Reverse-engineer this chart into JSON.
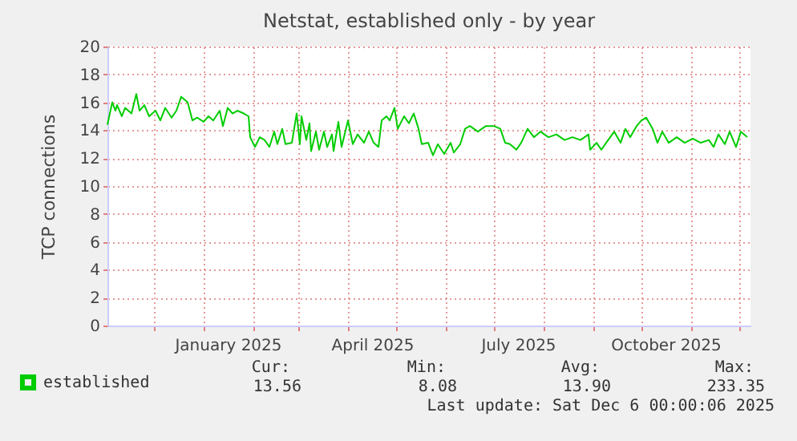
{
  "chart_data": {
    "type": "line",
    "title": "Netstat, established only - by year",
    "ylabel": "TCP connections",
    "x": [
      "2024-11-02",
      "2024-11-05",
      "2024-11-07",
      "2024-11-08",
      "2024-11-11",
      "2024-11-13",
      "2024-11-17",
      "2024-11-20",
      "2024-11-22",
      "2024-11-25",
      "2024-11-28",
      "2024-12-02",
      "2024-12-05",
      "2024-12-08",
      "2024-12-12",
      "2024-12-15",
      "2024-12-18",
      "2024-12-22",
      "2024-12-25",
      "2024-12-28",
      "2025-01-01",
      "2025-01-04",
      "2025-01-07",
      "2025-01-11",
      "2025-01-13",
      "2025-01-16",
      "2025-01-19",
      "2025-01-22",
      "2025-01-26",
      "2025-01-29",
      "2025-01-30",
      "2025-02-02",
      "2025-02-05",
      "2025-02-08",
      "2025-02-11",
      "2025-02-14",
      "2025-02-16",
      "2025-02-19",
      "2025-02-21",
      "2025-02-25",
      "2025-02-28",
      "2025-03-02",
      "2025-03-03",
      "2025-03-06",
      "2025-03-08",
      "2025-03-09",
      "2025-03-12",
      "2025-03-14",
      "2025-03-17",
      "2025-03-19",
      "2025-03-22",
      "2025-03-23",
      "2025-03-26",
      "2025-03-28",
      "2025-04-01",
      "2025-04-04",
      "2025-04-07",
      "2025-04-11",
      "2025-04-14",
      "2025-04-17",
      "2025-04-20",
      "2025-04-22",
      "2025-04-25",
      "2025-04-27",
      "2025-04-30",
      "2025-05-02",
      "2025-05-06",
      "2025-05-09",
      "2025-05-12",
      "2025-05-15",
      "2025-05-17",
      "2025-05-21",
      "2025-05-24",
      "2025-05-27",
      "2025-05-31",
      "2025-06-04",
      "2025-06-06",
      "2025-06-10",
      "2025-06-13",
      "2025-06-16",
      "2025-06-21",
      "2025-06-26",
      "2025-07-01",
      "2025-07-05",
      "2025-07-08",
      "2025-07-11",
      "2025-07-15",
      "2025-07-18",
      "2025-07-22",
      "2025-07-26",
      "2025-07-30",
      "2025-08-04",
      "2025-08-09",
      "2025-08-14",
      "2025-08-19",
      "2025-08-24",
      "2025-08-29",
      "2025-08-30",
      "2025-09-03",
      "2025-09-06",
      "2025-09-09",
      "2025-09-14",
      "2025-09-18",
      "2025-09-21",
      "2025-09-24",
      "2025-09-28",
      "2025-10-01",
      "2025-10-04",
      "2025-10-08",
      "2025-10-11",
      "2025-10-14",
      "2025-10-18",
      "2025-10-23",
      "2025-10-28",
      "2025-11-02",
      "2025-11-07",
      "2025-11-12",
      "2025-11-15",
      "2025-11-18",
      "2025-11-22",
      "2025-11-25",
      "2025-11-29",
      "2025-12-02",
      "2025-12-06"
    ],
    "series": [
      {
        "name": "established",
        "color": "#00cc00",
        "values": [
          14.4,
          16.0,
          15.4,
          15.8,
          15.0,
          15.6,
          15.2,
          16.6,
          15.4,
          15.8,
          15.0,
          15.4,
          14.7,
          15.6,
          14.9,
          15.4,
          16.4,
          16.0,
          14.7,
          14.9,
          14.6,
          15.0,
          14.7,
          15.4,
          14.3,
          15.6,
          15.2,
          15.4,
          15.2,
          15.0,
          13.5,
          12.8,
          13.5,
          13.3,
          12.8,
          13.9,
          13.0,
          14.1,
          13.0,
          13.1,
          15.2,
          13.0,
          15.0,
          13.3,
          14.5,
          12.5,
          13.9,
          12.6,
          13.9,
          12.8,
          13.7,
          12.5,
          14.6,
          12.8,
          14.7,
          13.0,
          13.7,
          13.1,
          13.9,
          13.1,
          12.8,
          14.7,
          15.0,
          14.7,
          15.6,
          14.1,
          15.0,
          14.5,
          15.2,
          14.1,
          13.0,
          13.1,
          12.2,
          13.0,
          12.3,
          13.1,
          12.4,
          13.0,
          14.1,
          14.3,
          13.9,
          14.3,
          14.3,
          14.1,
          13.1,
          13.0,
          12.6,
          13.1,
          14.1,
          13.5,
          13.9,
          13.5,
          13.7,
          13.3,
          13.5,
          13.3,
          13.7,
          12.6,
          13.1,
          12.6,
          13.1,
          13.9,
          13.1,
          14.1,
          13.5,
          14.3,
          14.7,
          14.9,
          14.1,
          13.1,
          13.9,
          13.1,
          13.5,
          13.1,
          13.4,
          13.1,
          13.3,
          12.8,
          13.7,
          13.0,
          13.9,
          12.8,
          13.9,
          13.5
        ]
      }
    ],
    "xlim": [
      "2024-11-02",
      "2025-12-08"
    ],
    "xticks": [
      {
        "value": "2024-12-01",
        "label": null
      },
      {
        "value": "2025-01-01",
        "label": null
      },
      {
        "value": "2025-01-16",
        "label": "January 2025"
      },
      {
        "value": "2025-02-01",
        "label": null
      },
      {
        "value": "2025-03-01",
        "label": null
      },
      {
        "value": "2025-04-01",
        "label": null
      },
      {
        "value": "2025-04-16",
        "label": "April 2025"
      },
      {
        "value": "2025-05-01",
        "label": null
      },
      {
        "value": "2025-06-01",
        "label": null
      },
      {
        "value": "2025-07-01",
        "label": null
      },
      {
        "value": "2025-07-16",
        "label": "July 2025"
      },
      {
        "value": "2025-08-01",
        "label": null
      },
      {
        "value": "2025-09-01",
        "label": null
      },
      {
        "value": "2025-10-01",
        "label": null
      },
      {
        "value": "2025-10-16",
        "label": "October 2025"
      },
      {
        "value": "2025-11-01",
        "label": null
      },
      {
        "value": "2025-12-01",
        "label": null
      }
    ],
    "ylim": [
      0,
      20
    ],
    "yticks": [
      0,
      2,
      4,
      6,
      8,
      10,
      12,
      14,
      16,
      18,
      20
    ],
    "grid": true,
    "legend": "bottom left",
    "marker": "none",
    "line_style": "solid",
    "annotations": [
      "Cur:",
      "13.56",
      "Min:",
      "8.08",
      "Avg:",
      "13.90",
      "Max:",
      "233.35",
      "Last update: Sat Dec  6 00:00:06 2025"
    ]
  }
}
